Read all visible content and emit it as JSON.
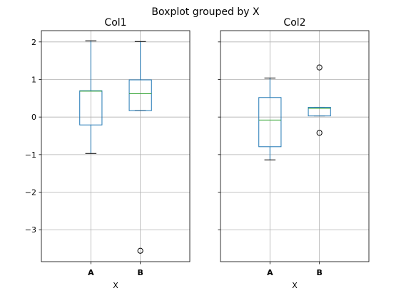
{
  "chart_data": {
    "type": "boxplot",
    "title": "Boxplot grouped by X",
    "categories": [
      "A",
      "B"
    ],
    "xlabel": "X",
    "ylim": [
      -3.85,
      2.3
    ],
    "yticks": [
      -3,
      -2,
      -1,
      0,
      1,
      2
    ],
    "ytick_labels": [
      "−3",
      "−2",
      "−1",
      "0",
      "1",
      "2"
    ],
    "sharey": true,
    "grid": true,
    "colors": {
      "box": "#1f77b4",
      "median": "#2ca02c",
      "whisker": "#1f77b4",
      "cap": "#000000",
      "flier": "#000000"
    },
    "panels": [
      {
        "title": "Col1",
        "boxes": [
          {
            "category": "A",
            "whislo": -0.97,
            "q1": -0.21,
            "med": 0.69,
            "q3": 0.7,
            "whishi": 2.03,
            "fliers": []
          },
          {
            "category": "B",
            "whislo": 0.17,
            "q1": 0.17,
            "med": 0.62,
            "q3": 0.99,
            "whishi": 2.01,
            "fliers": [
              -3.56
            ]
          }
        ]
      },
      {
        "title": "Col2",
        "boxes": [
          {
            "category": "A",
            "whislo": -1.14,
            "q1": -0.79,
            "med": -0.08,
            "q3": 0.52,
            "whishi": 1.04,
            "fliers": []
          },
          {
            "category": "B",
            "whislo": 0.03,
            "q1": 0.03,
            "med": 0.23,
            "q3": 0.26,
            "whishi": 0.26,
            "fliers": [
              1.32,
              -0.42
            ]
          }
        ]
      }
    ]
  }
}
